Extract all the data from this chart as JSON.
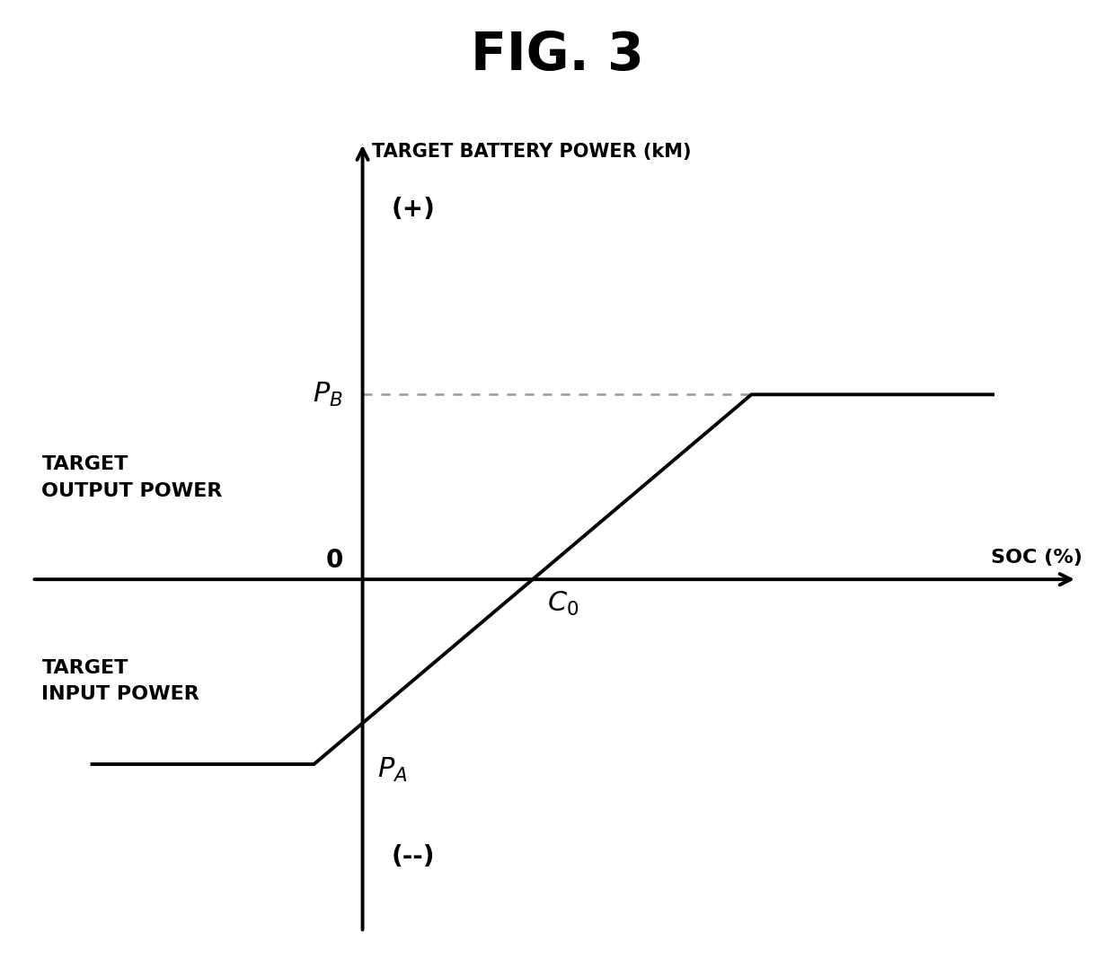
{
  "title": "FIG. 3",
  "title_fontsize": 42,
  "ylabel": "TARGET BATTERY POWER (kM)",
  "xlabel": "SOC (%)",
  "background_color": "#ffffff",
  "line_color": "#000000",
  "dashed_color": "#999999",
  "font_color": "#000000",
  "P_A": -2.2,
  "P_B": 2.2,
  "x_left_flat": -2.8,
  "x_PA_end": -0.5,
  "x_C0": 1.8,
  "x_PB_start": 4.0,
  "x_right": 6.5,
  "xlim": [
    -3.5,
    7.5
  ],
  "ylim": [
    -4.5,
    5.5
  ],
  "label_fontsize": 16,
  "annotation_fontsize": 20,
  "lw": 2.8
}
